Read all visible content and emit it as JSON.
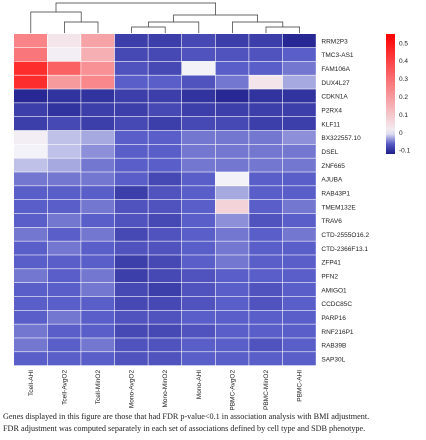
{
  "chart_data": {
    "type": "heatmap",
    "title": "",
    "columns": [
      "Tcell-AHI",
      "Tcell-AvgO2",
      "Tcell-MinO2",
      "Mono-AvgO2",
      "Mono-MinO2",
      "Mono-AHI",
      "PBMC-AvgO2",
      "PBMC-MinO2",
      "PBMC-AHI"
    ],
    "rows": [
      "RRM2P3",
      "TMC3-AS1",
      "FAM106A",
      "DUX4L27",
      "CDKN1A",
      "P2RX4",
      "KLF11",
      "BX322557.10",
      "DSEL",
      "ZNF665",
      "AJUBA",
      "RAB43P1",
      "TMEM132E",
      "TRAV6",
      "CTD-2555O16.2",
      "CTD-2366F13.1",
      "ZFP41",
      "PFN2",
      "AMIGO1",
      "CCDC85C",
      "PARP16",
      "RNF216P1",
      "RAB39B",
      "SAP30L"
    ],
    "values": [
      [
        0.25,
        0.03,
        0.18,
        -0.09,
        -0.09,
        -0.08,
        -0.09,
        -0.09,
        -0.11
      ],
      [
        0.28,
        0.01,
        0.15,
        -0.08,
        -0.08,
        -0.07,
        -0.07,
        -0.07,
        -0.06
      ],
      [
        0.45,
        0.33,
        0.22,
        -0.07,
        -0.08,
        0.0,
        -0.06,
        -0.06,
        -0.05
      ],
      [
        0.45,
        0.2,
        0.24,
        -0.06,
        -0.06,
        -0.07,
        -0.05,
        0.03,
        -0.03
      ],
      [
        -0.11,
        -0.1,
        -0.1,
        -0.09,
        -0.09,
        -0.1,
        -0.11,
        -0.1,
        -0.1
      ],
      [
        -0.09,
        -0.1,
        -0.09,
        -0.09,
        -0.08,
        -0.09,
        -0.09,
        -0.09,
        -0.09
      ],
      [
        -0.09,
        -0.08,
        -0.09,
        -0.08,
        -0.09,
        -0.08,
        -0.08,
        -0.09,
        -0.09
      ],
      [
        0.01,
        -0.02,
        -0.03,
        -0.06,
        -0.06,
        -0.05,
        -0.05,
        -0.05,
        -0.04
      ],
      [
        0.0,
        -0.02,
        -0.04,
        -0.06,
        -0.06,
        -0.05,
        -0.05,
        -0.05,
        -0.05
      ],
      [
        -0.02,
        -0.03,
        -0.05,
        -0.06,
        -0.06,
        -0.05,
        -0.05,
        -0.05,
        -0.05
      ],
      [
        -0.05,
        -0.05,
        -0.05,
        -0.06,
        -0.08,
        -0.06,
        0.0,
        -0.06,
        -0.06
      ],
      [
        -0.06,
        -0.06,
        -0.06,
        -0.09,
        -0.07,
        -0.06,
        -0.03,
        -0.06,
        -0.06
      ],
      [
        -0.06,
        -0.06,
        -0.05,
        -0.07,
        -0.07,
        -0.06,
        0.07,
        -0.06,
        -0.05
      ],
      [
        -0.06,
        -0.05,
        -0.06,
        -0.07,
        -0.08,
        -0.06,
        -0.04,
        -0.07,
        -0.06
      ],
      [
        -0.05,
        -0.06,
        -0.05,
        -0.08,
        -0.07,
        -0.06,
        -0.05,
        -0.06,
        -0.05
      ],
      [
        -0.06,
        -0.05,
        -0.06,
        -0.07,
        -0.07,
        -0.06,
        -0.05,
        -0.06,
        -0.06
      ],
      [
        -0.06,
        -0.06,
        -0.06,
        -0.09,
        -0.08,
        -0.06,
        -0.05,
        -0.06,
        -0.06
      ],
      [
        -0.05,
        -0.06,
        -0.05,
        -0.09,
        -0.08,
        -0.07,
        -0.06,
        -0.06,
        -0.06
      ],
      [
        -0.06,
        -0.06,
        -0.05,
        -0.08,
        -0.09,
        -0.07,
        -0.06,
        -0.07,
        -0.06
      ],
      [
        -0.06,
        -0.06,
        -0.06,
        -0.08,
        -0.08,
        -0.07,
        -0.06,
        -0.07,
        -0.06
      ],
      [
        -0.06,
        -0.05,
        -0.06,
        -0.07,
        -0.07,
        -0.06,
        -0.06,
        -0.06,
        -0.06
      ],
      [
        -0.05,
        -0.06,
        -0.06,
        -0.08,
        -0.08,
        -0.07,
        -0.06,
        -0.06,
        -0.06
      ],
      [
        -0.05,
        -0.06,
        -0.05,
        -0.07,
        -0.07,
        -0.06,
        -0.06,
        -0.07,
        -0.06
      ],
      [
        -0.06,
        -0.06,
        -0.06,
        -0.07,
        -0.07,
        -0.06,
        -0.06,
        -0.06,
        -0.06
      ]
    ],
    "color_scale": {
      "ticks": [
        0.5,
        0.4,
        0.3,
        0.2,
        0.1,
        0,
        -0.1
      ],
      "tick_labels": [
        "0.5",
        "0.4",
        "0.3",
        "0.2",
        "0.1",
        "0",
        "-0.1"
      ],
      "range": [
        -0.12,
        0.55
      ],
      "colors": {
        "low": "#1d1d8a",
        "mid_low": "#5a5ec8",
        "mid": "#f2f2f8",
        "high": "#ff0000"
      }
    },
    "column_dendrogram": true,
    "legend": "top-right"
  },
  "caption": {
    "line1": "Genes displayed in this figure are those that had FDR p-value<0.1 in association analysis with BMI adjustment.",
    "line2": "FDR adjustment was computed separately in each set of associations defined by cell type and SDB phenotype."
  }
}
